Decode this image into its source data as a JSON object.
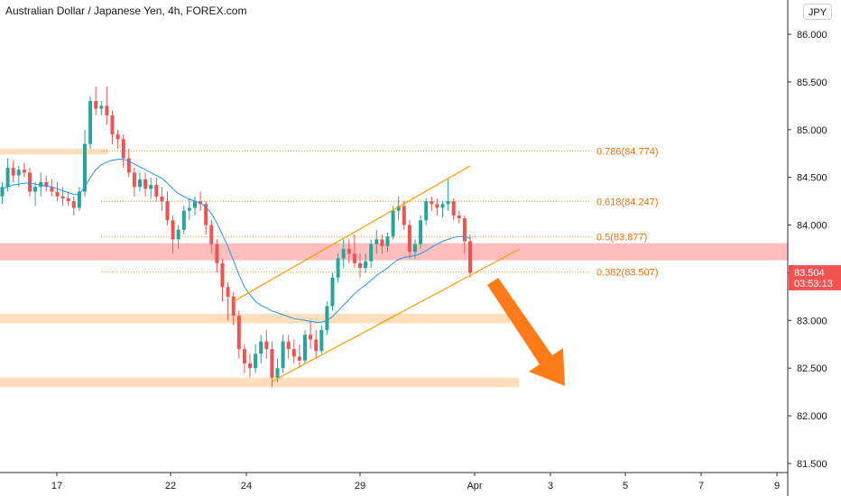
{
  "header": {
    "title": "Australian Dollar / Japanese Yen, 4h, FOREX.com"
  },
  "currency_button": "JPY",
  "last_price": {
    "price": "83.504",
    "countdown": "03:53:13"
  },
  "colors": {
    "up_candle": "#26a69a",
    "down_candle": "#ef5350",
    "ma_line": "#2196f3",
    "channel": "#ff9800",
    "fib_text": "#ef6c00",
    "resistance_zone": "#ffb3b3",
    "support_zone": "#ffd8b0",
    "arrow": "#ff6d00",
    "price_tag": "#ef5350"
  },
  "chart_data": {
    "type": "candlestick",
    "title": "Australian Dollar / Japanese Yen, 4h, FOREX.com",
    "ylim": [
      81.35,
      86.35
    ],
    "y_ticks": [
      "86.000",
      "85.500",
      "85.000",
      "84.500",
      "84.000",
      "83.500",
      "83.000",
      "82.500",
      "82.000",
      "81.500"
    ],
    "x_ticks": [
      "17",
      "22",
      "24",
      "29",
      "Apr",
      "3",
      "5",
      "7",
      "9"
    ],
    "candles": [
      [
        84.3,
        84.45,
        84.22,
        84.4
      ],
      [
        84.4,
        84.7,
        84.35,
        84.6
      ],
      [
        84.6,
        84.68,
        84.45,
        84.52
      ],
      [
        84.52,
        84.62,
        84.4,
        84.58
      ],
      [
        84.58,
        84.65,
        84.5,
        84.55
      ],
      [
        84.55,
        84.6,
        84.3,
        84.35
      ],
      [
        84.35,
        84.45,
        84.2,
        84.4
      ],
      [
        84.4,
        84.55,
        84.3,
        84.45
      ],
      [
        84.45,
        84.52,
        84.35,
        84.4
      ],
      [
        84.4,
        84.48,
        84.3,
        84.35
      ],
      [
        84.35,
        84.45,
        84.25,
        84.3
      ],
      [
        84.3,
        84.4,
        84.2,
        84.28
      ],
      [
        84.28,
        84.35,
        84.2,
        84.25
      ],
      [
        84.25,
        84.3,
        84.1,
        84.18
      ],
      [
        84.18,
        84.4,
        84.15,
        84.35
      ],
      [
        84.35,
        85.0,
        84.3,
        84.85
      ],
      [
        84.85,
        85.35,
        84.8,
        85.3
      ],
      [
        85.3,
        85.45,
        85.15,
        85.22
      ],
      [
        85.22,
        85.3,
        85.15,
        85.25
      ],
      [
        85.25,
        85.45,
        85.05,
        85.15
      ],
      [
        85.15,
        85.2,
        84.85,
        84.95
      ],
      [
        84.95,
        85.0,
        84.8,
        84.9
      ],
      [
        84.9,
        84.95,
        84.6,
        84.7
      ],
      [
        84.7,
        84.8,
        84.5,
        84.55
      ],
      [
        84.55,
        84.6,
        84.3,
        84.4
      ],
      [
        84.4,
        84.55,
        84.35,
        84.48
      ],
      [
        84.48,
        84.55,
        84.3,
        84.38
      ],
      [
        84.38,
        84.5,
        84.28,
        84.42
      ],
      [
        84.42,
        84.5,
        84.25,
        84.3
      ],
      [
        84.3,
        84.4,
        84.15,
        84.25
      ],
      [
        84.25,
        84.35,
        84.0,
        84.05
      ],
      [
        84.05,
        84.1,
        83.7,
        83.85
      ],
      [
        83.85,
        84.0,
        83.75,
        83.95
      ],
      [
        83.95,
        84.2,
        83.9,
        84.15
      ],
      [
        84.15,
        84.28,
        84.05,
        84.18
      ],
      [
        84.18,
        84.3,
        84.1,
        84.25
      ],
      [
        84.25,
        84.35,
        84.15,
        84.22
      ],
      [
        84.22,
        84.25,
        83.9,
        84.0
      ],
      [
        84.0,
        84.05,
        83.7,
        83.8
      ],
      [
        83.8,
        83.85,
        83.5,
        83.6
      ],
      [
        83.6,
        83.65,
        83.2,
        83.35
      ],
      [
        83.35,
        83.4,
        83.0,
        83.25
      ],
      [
        83.25,
        83.3,
        82.95,
        83.05
      ],
      [
        83.05,
        83.1,
        82.6,
        82.7
      ],
      [
        82.7,
        82.75,
        82.45,
        82.55
      ],
      [
        82.55,
        82.65,
        82.4,
        82.5
      ],
      [
        82.5,
        82.75,
        82.45,
        82.65
      ],
      [
        82.65,
        82.85,
        82.55,
        82.78
      ],
      [
        82.78,
        82.9,
        82.6,
        82.7
      ],
      [
        82.7,
        82.78,
        82.3,
        82.4
      ],
      [
        82.4,
        82.6,
        82.35,
        82.5
      ],
      [
        82.5,
        82.85,
        82.45,
        82.78
      ],
      [
        82.78,
        82.85,
        82.6,
        82.7
      ],
      [
        82.7,
        82.8,
        82.55,
        82.62
      ],
      [
        82.62,
        82.75,
        82.5,
        82.58
      ],
      [
        82.58,
        82.9,
        82.55,
        82.85
      ],
      [
        82.85,
        83.0,
        82.7,
        82.8
      ],
      [
        82.8,
        82.9,
        82.6,
        82.68
      ],
      [
        82.68,
        82.95,
        82.65,
        82.9
      ],
      [
        82.9,
        83.2,
        82.85,
        83.15
      ],
      [
        83.15,
        83.5,
        83.1,
        83.45
      ],
      [
        83.45,
        83.7,
        83.4,
        83.65
      ],
      [
        83.65,
        83.85,
        83.55,
        83.75
      ],
      [
        83.75,
        83.85,
        83.6,
        83.7
      ],
      [
        83.7,
        83.9,
        83.55,
        83.6
      ],
      [
        83.6,
        83.7,
        83.45,
        83.55
      ],
      [
        83.55,
        83.7,
        83.5,
        83.62
      ],
      [
        83.62,
        83.85,
        83.55,
        83.8
      ],
      [
        83.8,
        83.95,
        83.7,
        83.85
      ],
      [
        83.85,
        83.9,
        83.7,
        83.78
      ],
      [
        83.78,
        83.92,
        83.72,
        83.88
      ],
      [
        83.88,
        84.2,
        83.85,
        84.15
      ],
      [
        84.15,
        84.3,
        84.05,
        84.2
      ],
      [
        84.2,
        84.25,
        83.95,
        84.0
      ],
      [
        84.0,
        84.05,
        83.65,
        83.72
      ],
      [
        83.72,
        83.85,
        83.65,
        83.8
      ],
      [
        83.8,
        84.1,
        83.75,
        84.05
      ],
      [
        84.05,
        84.28,
        84.0,
        84.25
      ],
      [
        84.25,
        84.3,
        84.15,
        84.22
      ],
      [
        84.22,
        84.28,
        84.1,
        84.18
      ],
      [
        84.18,
        84.25,
        84.08,
        84.22
      ],
      [
        84.22,
        84.48,
        84.15,
        84.25
      ],
      [
        84.25,
        84.28,
        84.05,
        84.1
      ],
      [
        84.1,
        84.15,
        84.02,
        84.07
      ],
      [
        84.07,
        84.1,
        83.7,
        83.83
      ],
      [
        83.83,
        83.9,
        83.45,
        83.5
      ]
    ],
    "moving_average": [
      84.38,
      84.4,
      84.42,
      84.43,
      84.44,
      84.44,
      84.43,
      84.42,
      84.41,
      84.4,
      84.38,
      84.36,
      84.34,
      84.32,
      84.32,
      84.4,
      84.5,
      84.58,
      84.63,
      84.66,
      84.68,
      84.69,
      84.69,
      84.67,
      84.64,
      84.61,
      84.58,
      84.55,
      84.52,
      84.49,
      84.44,
      84.38,
      84.33,
      84.3,
      84.27,
      84.25,
      84.23,
      84.19,
      84.12,
      84.02,
      83.9,
      83.77,
      83.63,
      83.48,
      83.35,
      83.27,
      83.2,
      83.16,
      83.13,
      83.1,
      83.08,
      83.06,
      83.04,
      83.02,
      83.01,
      83.0,
      82.99,
      82.98,
      82.98,
      83.0,
      83.04,
      83.1,
      83.16,
      83.22,
      83.28,
      83.33,
      83.37,
      83.42,
      83.47,
      83.51,
      83.55,
      83.6,
      83.64,
      83.66,
      83.67,
      83.68,
      83.7,
      83.73,
      83.77,
      83.8,
      83.83,
      83.85,
      83.87,
      83.88,
      83.88,
      83.86
    ],
    "fib_levels": [
      {
        "ratio": "0.786",
        "price": 84.774,
        "label": "0.786(84.774)"
      },
      {
        "ratio": "0.618",
        "price": 84.247,
        "label": "0.618(84.247)"
      },
      {
        "ratio": "0.5",
        "price": 83.877,
        "label": "0.5(83.877)"
      },
      {
        "ratio": "0.382",
        "price": 83.507,
        "label": "0.382(83.507)"
      }
    ],
    "zones": [
      {
        "kind": "support",
        "low": 84.74,
        "high": 84.8
      },
      {
        "kind": "resistance",
        "low": 83.63,
        "high": 83.81
      },
      {
        "kind": "support",
        "low": 82.97,
        "high": 83.07
      },
      {
        "kind": "support",
        "low": 82.3,
        "high": 82.4
      }
    ]
  }
}
